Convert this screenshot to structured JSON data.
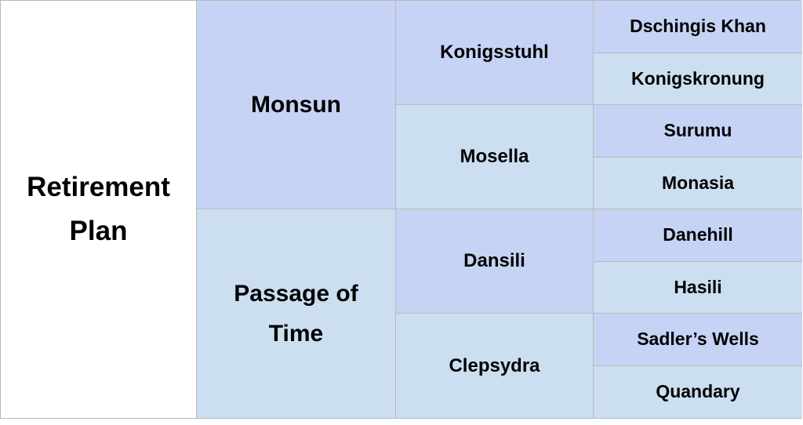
{
  "pedigree": {
    "subject": {
      "line1": "Retirement",
      "line2": "Plan"
    },
    "sire": "Monsun",
    "dam": {
      "line1": "Passage of",
      "line2": "Time"
    },
    "grandparents": [
      "Konigsstuhl",
      "Mosella",
      "Dansili",
      "Clepsydra"
    ],
    "great_grandparents": [
      "Dschingis Khan",
      "Konigskronung",
      "Surumu",
      "Monasia",
      "Danehill",
      "Hasili",
      "Sadler’s Wells",
      "Quandary"
    ]
  },
  "colors": {
    "dark_cell": "#c6d3f4",
    "light_cell": "#ccdff1",
    "border": "#b9b9b9"
  }
}
